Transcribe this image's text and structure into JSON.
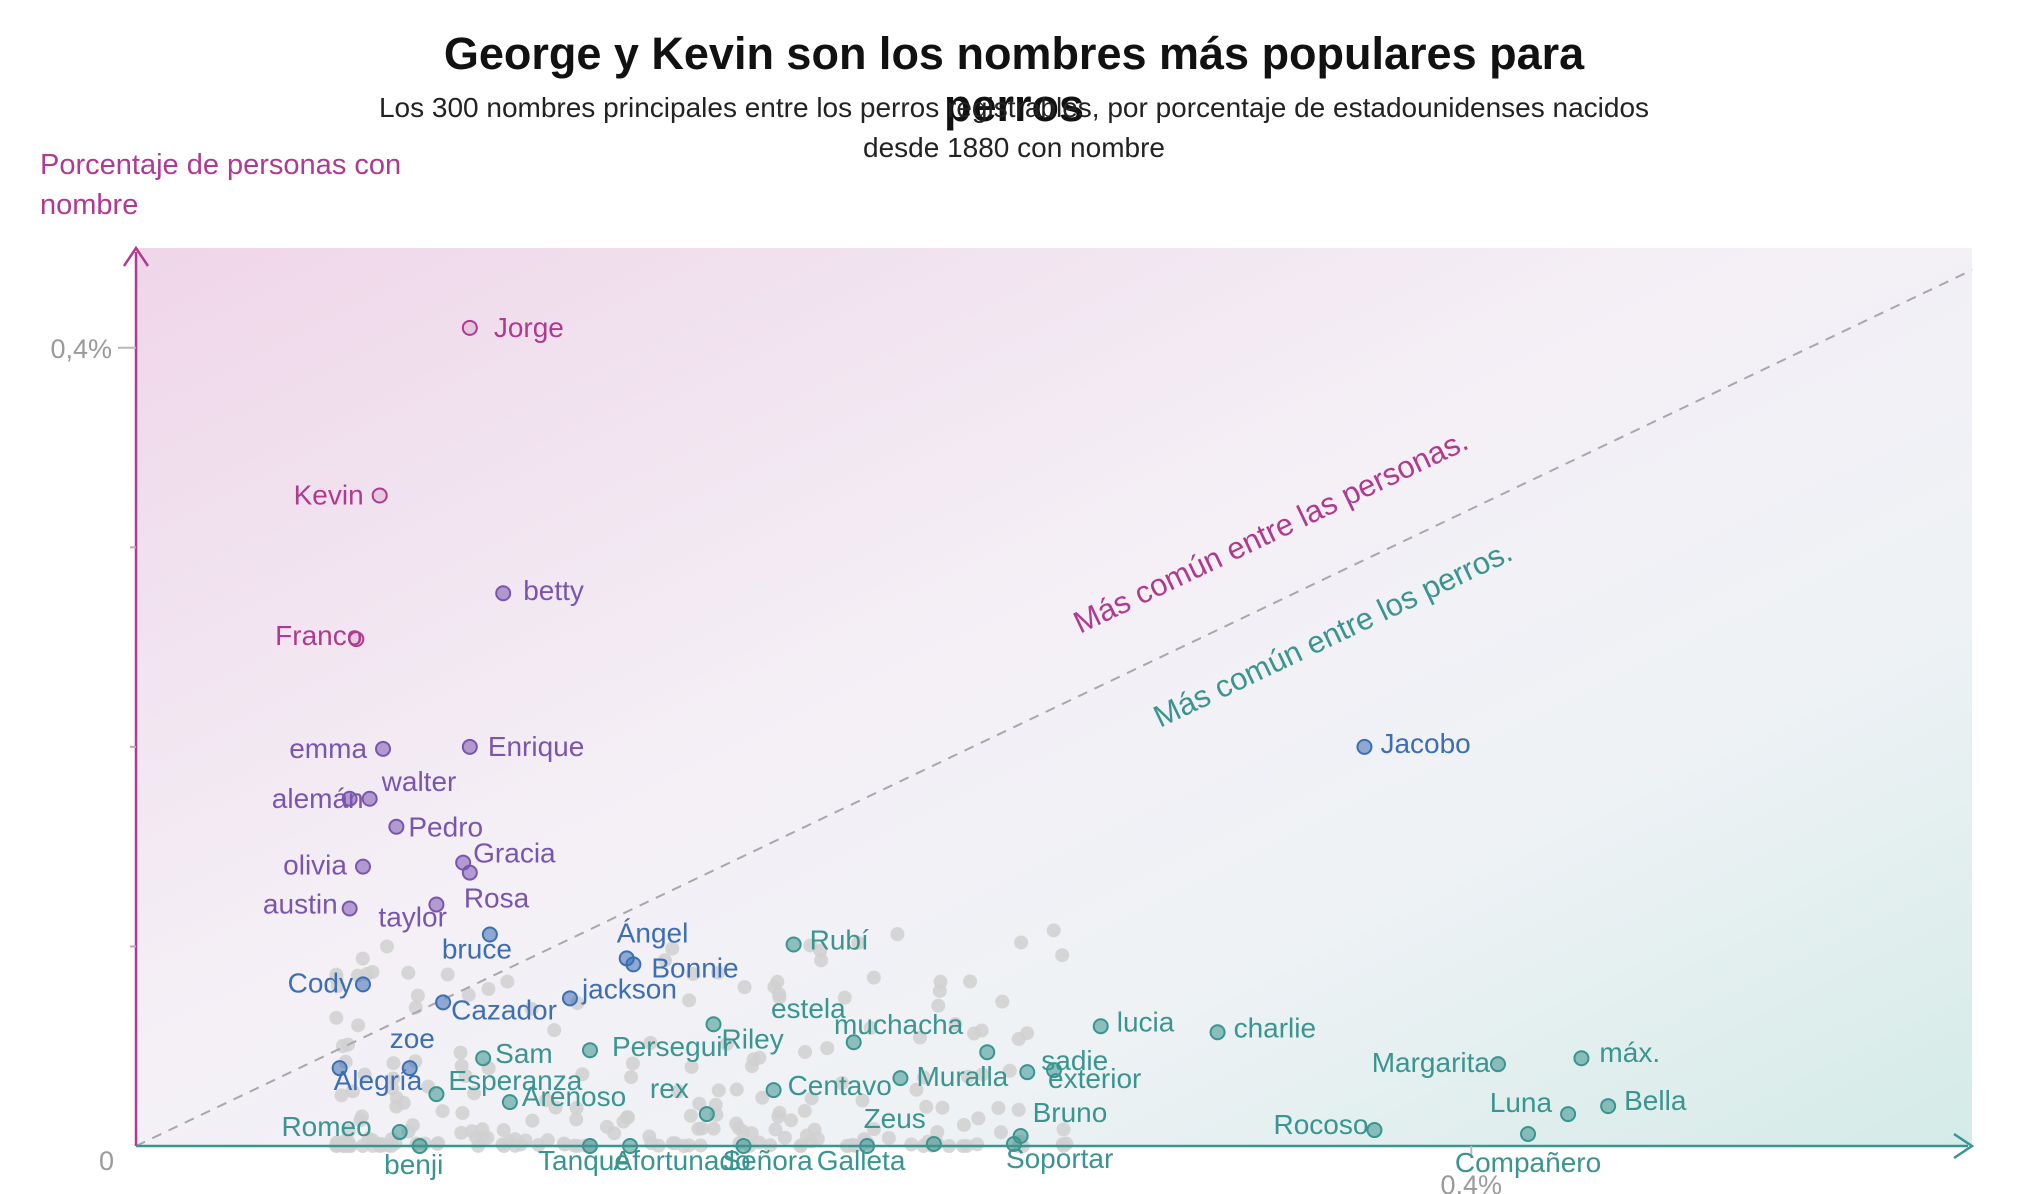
{
  "chart_data": {
    "type": "scatter",
    "title": "George y Kevin son los nombres más populares para perros",
    "subtitle": "Los 300 nombres principales entre los perros registrables, por porcentaje de estadounidenses nacidos desde 1880 con nombre",
    "ylabel": "Porcentaje de personas con nombre",
    "xlabel": "",
    "xlim": [
      0,
      0.55
    ],
    "ylim": [
      0,
      0.45
    ],
    "x_ticks": [
      {
        "value": 0,
        "label": "0"
      },
      {
        "value": 0.4,
        "label": "0,4%"
      }
    ],
    "y_ticks": [
      {
        "value": 0.4,
        "label": "0,4%"
      }
    ],
    "reference_line": {
      "type": "y=x",
      "label_above": "Más común entre las personas.",
      "label_below": "Más común entre los perros."
    },
    "colors": {
      "people": "#b03a8f",
      "mid": "#7a55b0",
      "blue": "#3c6eb4",
      "dogs": "#3a9490",
      "grey": "#d0d0d0"
    },
    "points": [
      {
        "label": "Jorge",
        "x": 0.1,
        "y": 0.41,
        "group": "people"
      },
      {
        "label": "Kevin",
        "x": 0.073,
        "y": 0.326,
        "group": "people"
      },
      {
        "label": "betty",
        "x": 0.11,
        "y": 0.277,
        "group": "mid"
      },
      {
        "label": "Franco",
        "x": 0.066,
        "y": 0.254,
        "group": "people"
      },
      {
        "label": "emma",
        "x": 0.074,
        "y": 0.199,
        "group": "mid"
      },
      {
        "label": "Enrique",
        "x": 0.1,
        "y": 0.2,
        "group": "mid"
      },
      {
        "label": "walter",
        "x": 0.07,
        "y": 0.174,
        "group": "mid"
      },
      {
        "label": "alemán",
        "x": 0.064,
        "y": 0.174,
        "group": "mid"
      },
      {
        "label": "Pedro",
        "x": 0.078,
        "y": 0.16,
        "group": "mid"
      },
      {
        "label": "Gracia",
        "x": 0.098,
        "y": 0.142,
        "group": "mid"
      },
      {
        "label": "olivia",
        "x": 0.068,
        "y": 0.14,
        "group": "mid"
      },
      {
        "label": "Rosa",
        "x": 0.1,
        "y": 0.137,
        "group": "mid"
      },
      {
        "label": "austin",
        "x": 0.064,
        "y": 0.119,
        "group": "mid"
      },
      {
        "label": "taylor",
        "x": 0.09,
        "y": 0.121,
        "group": "mid"
      },
      {
        "label": "bruce",
        "x": 0.106,
        "y": 0.106,
        "group": "blue"
      },
      {
        "label": "Ángel",
        "x": 0.147,
        "y": 0.094,
        "group": "blue"
      },
      {
        "label": "Bonnie",
        "x": 0.149,
        "y": 0.091,
        "group": "blue"
      },
      {
        "label": "Rubí",
        "x": 0.197,
        "y": 0.101,
        "group": "dogs"
      },
      {
        "label": "Cody",
        "x": 0.068,
        "y": 0.081,
        "group": "blue"
      },
      {
        "label": "jackson",
        "x": 0.13,
        "y": 0.074,
        "group": "blue"
      },
      {
        "label": "Cazador",
        "x": 0.092,
        "y": 0.072,
        "group": "blue"
      },
      {
        "label": "Jacobo",
        "x": 0.368,
        "y": 0.2,
        "group": "blue"
      },
      {
        "label": "lucia",
        "x": 0.289,
        "y": 0.06,
        "group": "dogs"
      },
      {
        "label": "charlie",
        "x": 0.324,
        "y": 0.057,
        "group": "dogs"
      },
      {
        "label": "muchacha",
        "x": 0.255,
        "y": 0.047,
        "group": "dogs"
      },
      {
        "label": "estela",
        "x": 0.215,
        "y": 0.052,
        "group": "dogs"
      },
      {
        "label": "Riley",
        "x": 0.173,
        "y": 0.061,
        "group": "dogs"
      },
      {
        "label": "Perseguir",
        "x": 0.136,
        "y": 0.048,
        "group": "dogs"
      },
      {
        "label": "zoe",
        "x": 0.082,
        "y": 0.039,
        "group": "blue"
      },
      {
        "label": "Sam",
        "x": 0.104,
        "y": 0.044,
        "group": "dogs"
      },
      {
        "label": "Alegría",
        "x": 0.061,
        "y": 0.039,
        "group": "blue"
      },
      {
        "label": "Esperanza",
        "x": 0.09,
        "y": 0.026,
        "group": "dogs"
      },
      {
        "label": "Arenoso",
        "x": 0.112,
        "y": 0.022,
        "group": "dogs"
      },
      {
        "label": "rex",
        "x": 0.171,
        "y": 0.016,
        "group": "dogs"
      },
      {
        "label": "Centavo",
        "x": 0.191,
        "y": 0.028,
        "group": "dogs"
      },
      {
        "label": "Muralla",
        "x": 0.229,
        "y": 0.034,
        "group": "dogs"
      },
      {
        "label": "sadie",
        "x": 0.267,
        "y": 0.037,
        "group": "dogs"
      },
      {
        "label": "exterior",
        "x": 0.275,
        "y": 0.038,
        "group": "dogs"
      },
      {
        "label": "Margarita",
        "x": 0.408,
        "y": 0.041,
        "group": "dogs"
      },
      {
        "label": "máx.",
        "x": 0.433,
        "y": 0.044,
        "group": "dogs"
      },
      {
        "label": "Luna",
        "x": 0.429,
        "y": 0.016,
        "group": "dogs"
      },
      {
        "label": "Bella",
        "x": 0.441,
        "y": 0.02,
        "group": "dogs"
      },
      {
        "label": "Rocoso",
        "x": 0.371,
        "y": 0.008,
        "group": "dogs"
      },
      {
        "label": "Compañero",
        "x": 0.417,
        "y": 0.006,
        "group": "dogs"
      },
      {
        "label": "Zeus",
        "x": 0.239,
        "y": 0.001,
        "group": "dogs"
      },
      {
        "label": "Bruno",
        "x": 0.265,
        "y": 0.005,
        "group": "dogs"
      },
      {
        "label": "Soportar",
        "x": 0.263,
        "y": 0.001,
        "group": "dogs"
      },
      {
        "label": "Romeo",
        "x": 0.079,
        "y": 0.007,
        "group": "dogs"
      },
      {
        "label": "benji",
        "x": 0.085,
        "y": 0.0,
        "group": "dogs"
      },
      {
        "label": "Tanque",
        "x": 0.136,
        "y": 0.0,
        "group": "dogs"
      },
      {
        "label": "Afortunado",
        "x": 0.148,
        "y": 0.0,
        "group": "dogs"
      },
      {
        "label": "Señora",
        "x": 0.182,
        "y": 0.0,
        "group": "dogs"
      },
      {
        "label": "Galleta",
        "x": 0.219,
        "y": 0.0,
        "group": "dogs"
      }
    ]
  }
}
